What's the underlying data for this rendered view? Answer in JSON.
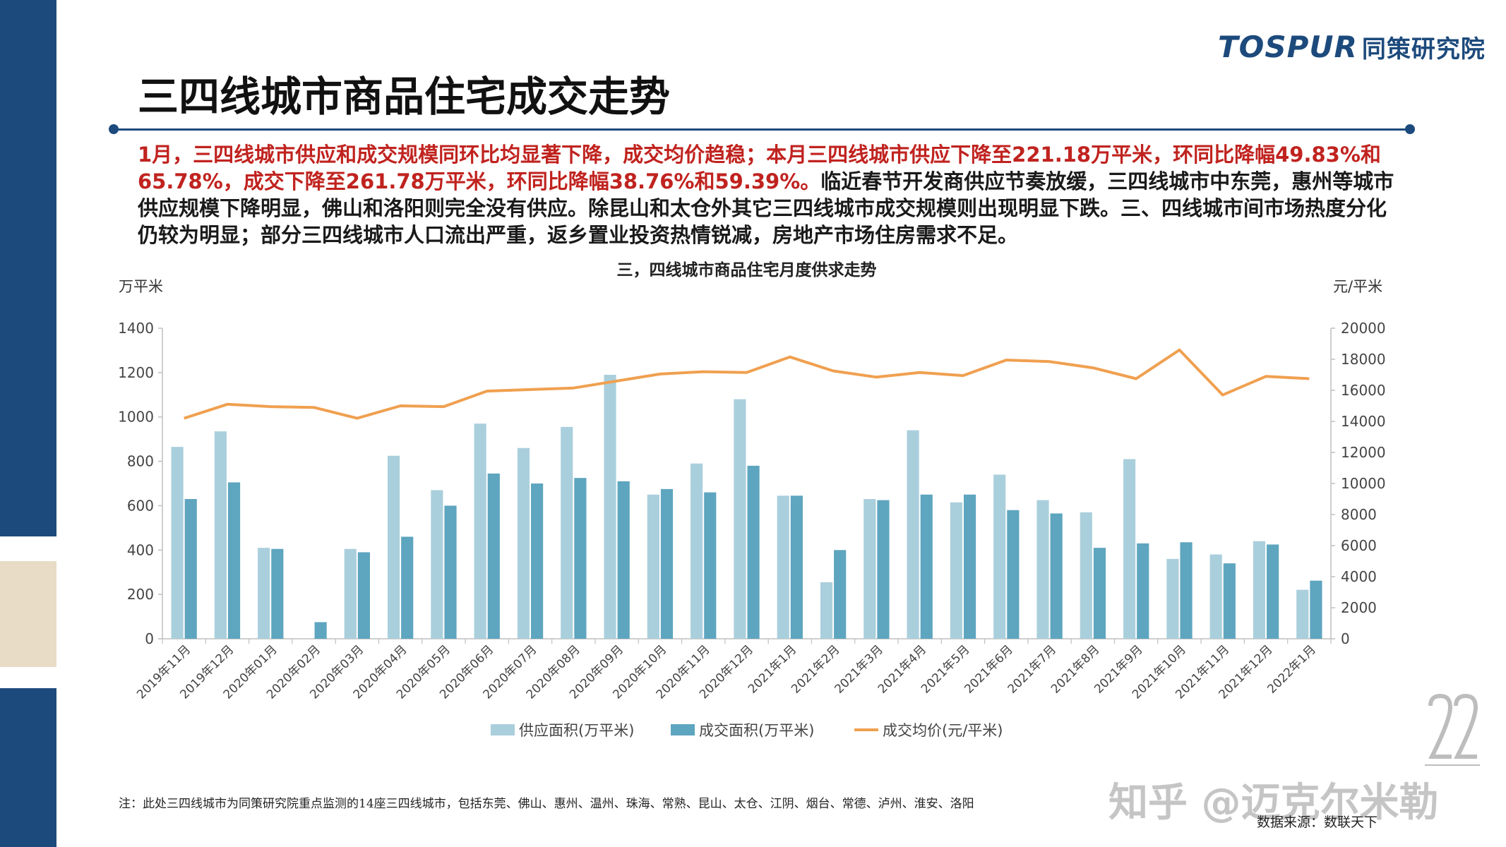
{
  "header": {
    "logo_text": "TOSPUR",
    "logo_cn": "同策研究院",
    "title": "三四线城市商品住宅成交走势"
  },
  "summary": {
    "red_part": "1月，三四线城市供应和成交规模同环比均显著下降，成交均价趋稳；本月三四线城市供应下降至221.18万平米，环同比降幅49.83%和65.78%，成交下降至261.78万平米，环同比降幅38.76%和59.39%。",
    "dark_part": "临近春节开发商供应节奏放缓，三四线城市中东莞，惠州等城市供应规模下降明显，佛山和洛阳则完全没有供应。除昆山和太仓外其它三四线城市成交规模则出现明显下跌。三、四线城市间市场热度分化仍较为明显；部分三四线城市人口流出严重，返乡置业投资热情锐减，房地产市场住房需求不足。"
  },
  "chart_data": {
    "type": "bar",
    "title": "三，四线城市商品住宅月度供求走势",
    "ylabel": "万平米",
    "y2label": "元/平米",
    "ylim": [
      0,
      1400
    ],
    "y2lim": [
      0,
      20000
    ],
    "yticks": [
      "0",
      "200",
      "400",
      "600",
      "800",
      "1000",
      "1200",
      "1400"
    ],
    "y2ticks": [
      "0",
      "2000",
      "4000",
      "6000",
      "8000",
      "10000",
      "12000",
      "14000",
      "16000",
      "18000",
      "20000"
    ],
    "grid": false,
    "legend": "bottom",
    "categories": [
      "2019年11月",
      "2019年12月",
      "2020年01月",
      "2020年02月",
      "2020年03月",
      "2020年04月",
      "2020年05月",
      "2020年06月",
      "2020年07月",
      "2020年08月",
      "2020年09月",
      "2020年10月",
      "2020年11月",
      "2020年12月",
      "2021年1月",
      "2021年2月",
      "2021年3月",
      "2021年4月",
      "2021年5月",
      "2021年6月",
      "2021年7月",
      "2021年8月",
      "2021年9月",
      "2021年10月",
      "2021年11月",
      "2021年12月",
      "2022年1月"
    ],
    "series": [
      {
        "name": "供应面积(万平米)",
        "type": "bar",
        "axis": "left",
        "color": "#aacfdc",
        "values": [
          865,
          935,
          410,
          0,
          405,
          825,
          670,
          970,
          860,
          955,
          1190,
          650,
          790,
          1080,
          645,
          255,
          630,
          940,
          615,
          740,
          625,
          570,
          810,
          360,
          380,
          440,
          221
        ]
      },
      {
        "name": "成交面积(万平米)",
        "type": "bar",
        "axis": "left",
        "color": "#5ea5bf",
        "values": [
          630,
          705,
          405,
          75,
          390,
          460,
          600,
          745,
          700,
          725,
          710,
          675,
          660,
          780,
          645,
          400,
          625,
          650,
          650,
          580,
          565,
          410,
          430,
          435,
          340,
          425,
          262
        ]
      },
      {
        "name": "成交均价(元/平米)",
        "type": "line",
        "axis": "right",
        "color": "#f0a050",
        "values": [
          14200,
          15100,
          14950,
          14900,
          14200,
          15000,
          14950,
          15950,
          16050,
          16150,
          16600,
          17050,
          17200,
          17150,
          18150,
          17250,
          16850,
          17150,
          16950,
          17950,
          17850,
          17450,
          16750,
          18600,
          15700,
          16900,
          16750
        ]
      }
    ]
  },
  "footer": {
    "note": "注：此处三四线城市为同策研究院重点监测的14座三四线城市，包括东莞、佛山、惠州、温州、珠海、常熟、昆山、太仓、江阴、烟台、常德、泸州、淮安、洛阳",
    "source": "数据来源：数联天下",
    "watermark": "知乎 @迈克尔米勒"
  }
}
